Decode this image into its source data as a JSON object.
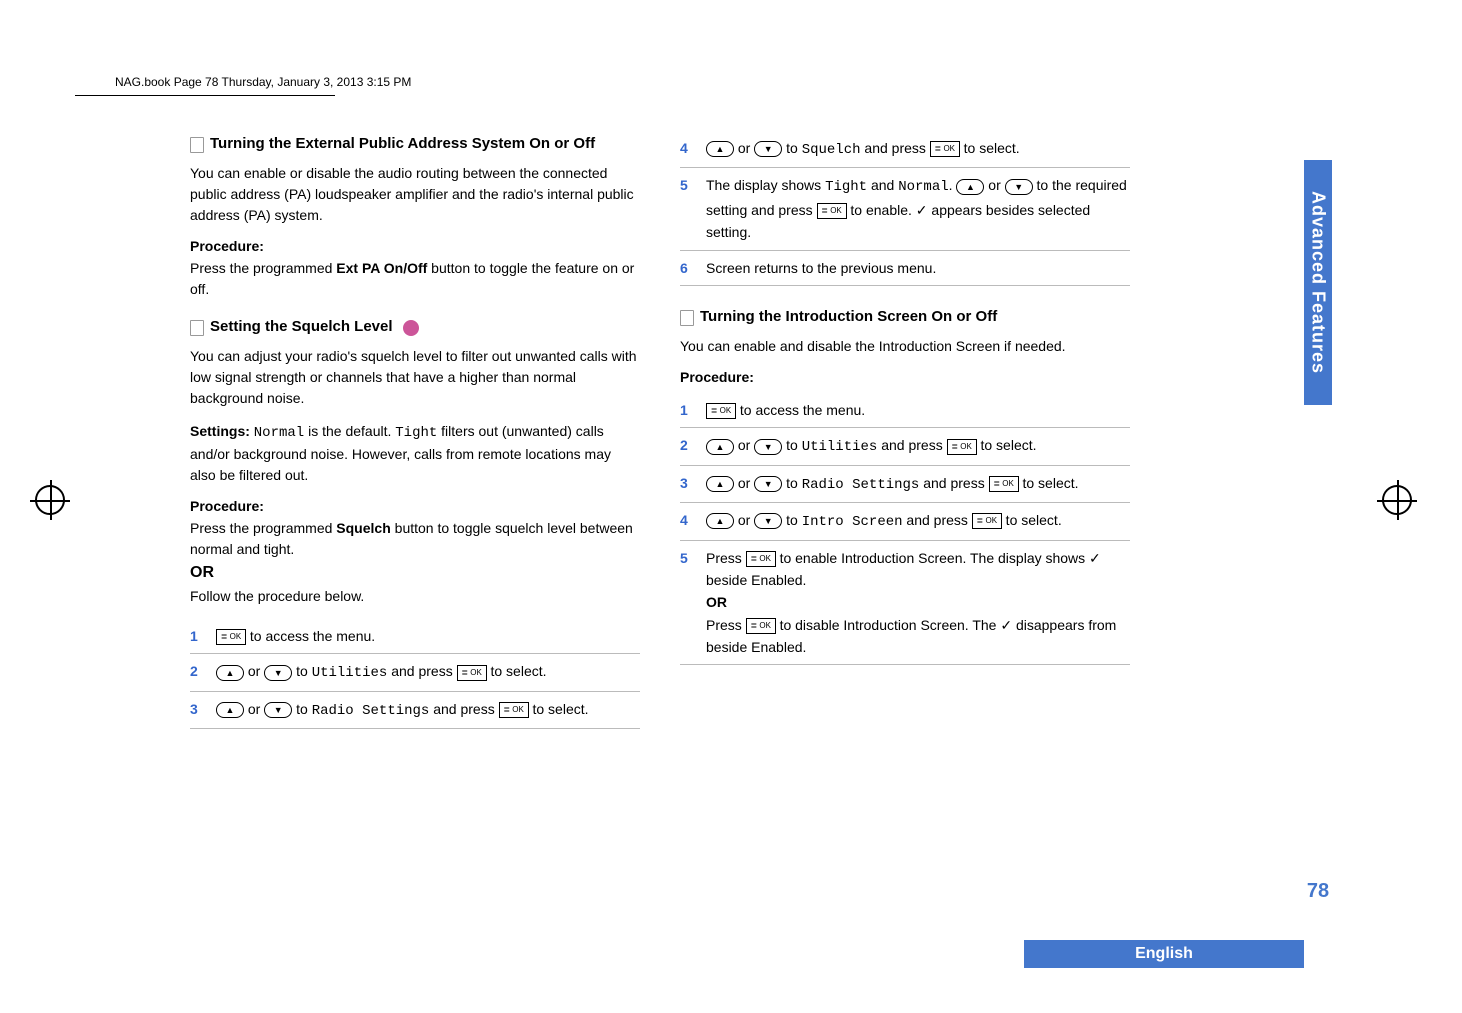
{
  "header": {
    "text": "NAG.book  Page 78  Thursday, January 3, 2013  3:15 PM"
  },
  "left_column": {
    "section1": {
      "title": "Turning the External Public Address System On or Off",
      "body": "You can enable or disable the audio routing between the connected public address (PA) loudspeaker amplifier and the radio's internal public address (PA) system.",
      "procedure_label": "Procedure:",
      "procedure_text_1": "Press the programmed ",
      "procedure_bold": "Ext PA On/Off",
      "procedure_text_2": " button to toggle the feature on or off."
    },
    "section2": {
      "title": "Setting the Squelch Level",
      "body": "You can adjust your radio's squelch level to filter out unwanted calls with low signal strength or channels that have a higher than normal background noise.",
      "settings_label": "Settings: ",
      "settings_mono1": "Normal",
      "settings_mid": " is the default. ",
      "settings_mono2": "Tight",
      "settings_end": " filters out (unwanted) calls and/or background noise. However, calls from remote locations may also be filtered out.",
      "procedure_label": "Procedure:",
      "procedure_text_1": "Press the programmed ",
      "procedure_bold": "Squelch",
      "procedure_text_2": " button to toggle squelch level between normal and tight.",
      "or_label": "OR",
      "follow_text": "Follow the procedure below.",
      "steps": [
        {
          "num": "1",
          "parts": [
            {
              "t": "btn-rect",
              "v": "OK"
            },
            {
              "t": "text",
              "v": " to access the menu."
            }
          ]
        },
        {
          "num": "2",
          "parts": [
            {
              "t": "btn-icon",
              "v": "▲"
            },
            {
              "t": "text",
              "v": " or "
            },
            {
              "t": "btn-icon",
              "v": "▼"
            },
            {
              "t": "text",
              "v": " to "
            },
            {
              "t": "mono",
              "v": "Utilities"
            },
            {
              "t": "text",
              "v": " and press "
            },
            {
              "t": "btn-rect",
              "v": "OK"
            },
            {
              "t": "text",
              "v": " to select."
            }
          ]
        },
        {
          "num": "3",
          "parts": [
            {
              "t": "btn-icon",
              "v": "▲"
            },
            {
              "t": "text",
              "v": " or "
            },
            {
              "t": "btn-icon",
              "v": "▼"
            },
            {
              "t": "text",
              "v": " to "
            },
            {
              "t": "mono",
              "v": "Radio Settings"
            },
            {
              "t": "text",
              "v": " and press "
            },
            {
              "t": "btn-rect",
              "v": "OK"
            },
            {
              "t": "text",
              "v": " to select."
            }
          ]
        }
      ]
    }
  },
  "right_column": {
    "top_steps": [
      {
        "num": "4",
        "parts": [
          {
            "t": "btn-icon",
            "v": "▲"
          },
          {
            "t": "text",
            "v": " or "
          },
          {
            "t": "btn-icon",
            "v": "▼"
          },
          {
            "t": "text",
            "v": " to "
          },
          {
            "t": "mono",
            "v": "Squelch"
          },
          {
            "t": "text",
            "v": " and press "
          },
          {
            "t": "btn-rect",
            "v": "OK"
          },
          {
            "t": "text",
            "v": " to select."
          }
        ]
      },
      {
        "num": "5",
        "parts": [
          {
            "t": "text",
            "v": "The display shows "
          },
          {
            "t": "mono",
            "v": "Tight"
          },
          {
            "t": "text",
            "v": " and "
          },
          {
            "t": "mono",
            "v": "Normal"
          },
          {
            "t": "text",
            "v": ". "
          },
          {
            "t": "btn-icon",
            "v": "▲"
          },
          {
            "t": "text",
            "v": " or "
          },
          {
            "t": "btn-icon",
            "v": "▼"
          },
          {
            "t": "text",
            "v": " to the required setting and press "
          },
          {
            "t": "btn-rect",
            "v": "OK"
          },
          {
            "t": "text",
            "v": " to enable. ✓ appears besides selected setting."
          }
        ]
      },
      {
        "num": "6",
        "parts": [
          {
            "t": "text",
            "v": "Screen returns to the previous menu."
          }
        ]
      }
    ],
    "section3": {
      "title": "Turning the Introduction Screen On or Off",
      "body": "You can enable and disable the Introduction Screen if needed.",
      "procedure_label": "Procedure:",
      "steps": [
        {
          "num": "1",
          "parts": [
            {
              "t": "btn-rect",
              "v": "OK"
            },
            {
              "t": "text",
              "v": " to access the menu."
            }
          ]
        },
        {
          "num": "2",
          "parts": [
            {
              "t": "btn-icon",
              "v": "▲"
            },
            {
              "t": "text",
              "v": " or "
            },
            {
              "t": "btn-icon",
              "v": "▼"
            },
            {
              "t": "text",
              "v": " to "
            },
            {
              "t": "mono",
              "v": "Utilities"
            },
            {
              "t": "text",
              "v": " and press "
            },
            {
              "t": "btn-rect",
              "v": "OK"
            },
            {
              "t": "text",
              "v": " to select."
            }
          ]
        },
        {
          "num": "3",
          "parts": [
            {
              "t": "btn-icon",
              "v": "▲"
            },
            {
              "t": "text",
              "v": " or "
            },
            {
              "t": "btn-icon",
              "v": "▼"
            },
            {
              "t": "text",
              "v": " to "
            },
            {
              "t": "mono",
              "v": "Radio Settings"
            },
            {
              "t": "text",
              "v": " and press "
            },
            {
              "t": "btn-rect",
              "v": "OK"
            },
            {
              "t": "text",
              "v": " to select."
            }
          ]
        },
        {
          "num": "4",
          "parts": [
            {
              "t": "btn-icon",
              "v": "▲"
            },
            {
              "t": "text",
              "v": " or "
            },
            {
              "t": "btn-icon",
              "v": "▼"
            },
            {
              "t": "text",
              "v": " to "
            },
            {
              "t": "mono",
              "v": "Intro Screen"
            },
            {
              "t": "text",
              "v": " and press "
            },
            {
              "t": "btn-rect",
              "v": "OK"
            },
            {
              "t": "text",
              "v": " to select."
            }
          ]
        },
        {
          "num": "5",
          "parts": [
            {
              "t": "text",
              "v": "Press "
            },
            {
              "t": "btn-rect",
              "v": "OK"
            },
            {
              "t": "text",
              "v": " to enable Introduction Screen. The display shows ✓ beside Enabled."
            },
            {
              "t": "br"
            },
            {
              "t": "bold",
              "v": "OR"
            },
            {
              "t": "br"
            },
            {
              "t": "text",
              "v": "Press "
            },
            {
              "t": "btn-rect",
              "v": "OK"
            },
            {
              "t": "text",
              "v": " to disable Introduction Screen. The ✓ disappears from beside Enabled."
            }
          ]
        }
      ]
    }
  },
  "side_tab": "Advanced Features",
  "page_number": "78",
  "footer_language": "English",
  "colors": {
    "accent_blue": "#4477cc",
    "step_num_blue": "#3366cc",
    "circle_pink": "#cc5599"
  }
}
